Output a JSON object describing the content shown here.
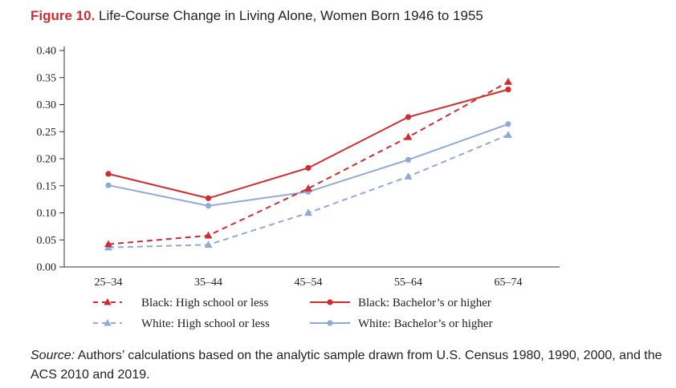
{
  "title": {
    "lead": "Figure 10.",
    "text": "Life-Course Change in Living Alone, Women Born 1946 to 1955"
  },
  "source": {
    "label": "Source:",
    "text": "Authors’ calculations based on the analytic sample drawn from U.S. Census 1980, 1990, 2000, and the ACS 2010 and 2019."
  },
  "colors": {
    "black": "#d12b2e",
    "white": "#8faad8"
  },
  "chart_data": {
    "type": "line",
    "title": "Life-Course Change in Living Alone, Women Born 1946 to 1955",
    "xlabel": "",
    "ylabel": "",
    "categories": [
      "25–34",
      "35–44",
      "45–54",
      "55–64",
      "65–74"
    ],
    "ylim": [
      0,
      0.4
    ],
    "yticks": [
      "0.00",
      "0.05",
      "0.10",
      "0.15",
      "0.20",
      "0.25",
      "0.30",
      "0.35",
      "0.40"
    ],
    "grid": false,
    "legend_position": "bottom",
    "series": [
      {
        "name": "Black: High school or less",
        "color": "black",
        "dash": true,
        "marker": "triangle",
        "values": [
          0.042,
          0.058,
          0.145,
          0.24,
          0.342
        ]
      },
      {
        "name": "Black: Bachelor’s or higher",
        "color": "black",
        "dash": false,
        "marker": "circle",
        "values": [
          0.172,
          0.127,
          0.183,
          0.277,
          0.328
        ]
      },
      {
        "name": "White: High school or less",
        "color": "white",
        "dash": true,
        "marker": "triangle",
        "values": [
          0.036,
          0.041,
          0.1,
          0.167,
          0.244
        ]
      },
      {
        "name": "White: Bachelor’s or higher",
        "color": "white",
        "dash": false,
        "marker": "circle",
        "values": [
          0.151,
          0.113,
          0.139,
          0.198,
          0.264
        ]
      }
    ]
  }
}
